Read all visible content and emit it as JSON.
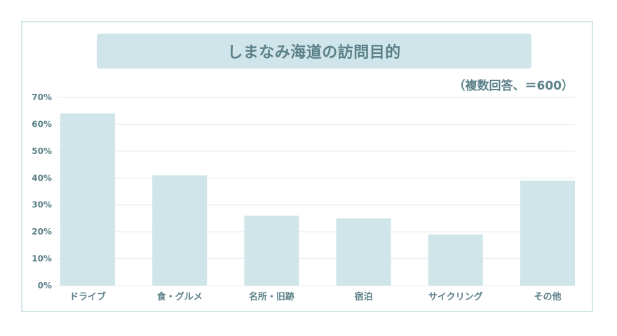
{
  "colors": {
    "bar": "#cfe5e9",
    "title_bg": "#cfe5e9",
    "text": "#5b8088",
    "grid": "#e2e8e9",
    "frame": "#d3e6ea"
  },
  "chart_data": {
    "type": "bar",
    "title": "しまなみ海道の訪問目的",
    "note": "（複数回答、＝600）",
    "categories": [
      "ドライブ",
      "食・グルメ",
      "名所・旧跡",
      "宿泊",
      "サイクリング",
      "その他"
    ],
    "values": [
      64,
      41,
      26,
      25,
      19,
      39
    ],
    "ylim": [
      0,
      70
    ],
    "yticks": [
      0,
      10,
      20,
      30,
      40,
      50,
      60,
      70
    ],
    "ytick_labels": [
      "0%",
      "10%",
      "20%",
      "30%",
      "40%",
      "50%",
      "60%",
      "70%"
    ],
    "grid": true,
    "legend": "none"
  }
}
